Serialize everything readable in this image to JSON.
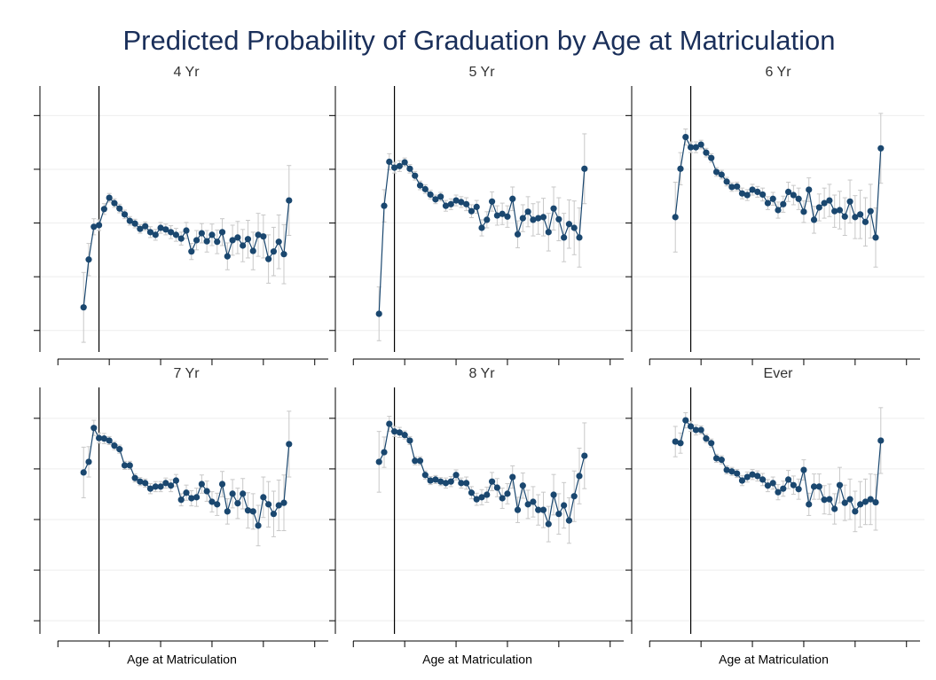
{
  "title": "Predicted Probability of Graduation by Age at Matriculation",
  "chart_data": [
    {
      "type": "line",
      "title": "4 Yr",
      "color": "#1a476f",
      "error_color": "#c8c8c8",
      "reference_x": 18,
      "x": [
        15,
        16,
        17,
        18,
        19,
        20,
        21,
        22,
        23,
        24,
        25,
        26,
        27,
        28,
        29,
        30,
        31,
        32,
        33,
        34,
        35,
        36,
        37,
        38,
        39,
        40,
        41,
        42,
        43,
        44,
        45,
        46,
        47,
        48,
        49,
        50,
        51,
        52,
        53,
        54,
        55
      ],
      "values": [
        0.143,
        0.232,
        0.293,
        0.296,
        0.326,
        0.347,
        0.337,
        0.327,
        0.316,
        0.304,
        0.299,
        0.289,
        0.294,
        0.283,
        0.278,
        0.291,
        0.288,
        0.283,
        0.278,
        0.271,
        0.286,
        0.247,
        0.268,
        0.281,
        0.266,
        0.278,
        0.265,
        0.283,
        0.238,
        0.268,
        0.273,
        0.258,
        0.27,
        0.248,
        0.278,
        0.275,
        0.233,
        0.247,
        0.265,
        0.242,
        0.342
      ],
      "errors": [
        0.065,
        0.03,
        0.015,
        0.01,
        0.01,
        0.008,
        0.008,
        0.008,
        0.008,
        0.008,
        0.008,
        0.008,
        0.008,
        0.01,
        0.01,
        0.01,
        0.01,
        0.012,
        0.012,
        0.012,
        0.015,
        0.015,
        0.018,
        0.018,
        0.02,
        0.02,
        0.022,
        0.025,
        0.025,
        0.028,
        0.03,
        0.03,
        0.035,
        0.035,
        0.04,
        0.04,
        0.045,
        0.045,
        0.05,
        0.055,
        0.065
      ],
      "xlim": [
        6.5,
        63.5
      ],
      "xticks": [
        10,
        20,
        30,
        40,
        50,
        60
      ],
      "ylim": [
        0.06,
        0.555
      ],
      "yticks": [
        0.1,
        0.2,
        0.3,
        0.4,
        0.5
      ],
      "grid": true
    },
    {
      "type": "line",
      "title": "5 Yr",
      "color": "#1a476f",
      "error_color": "#c8c8c8",
      "reference_x": 18,
      "x": [
        15,
        16,
        17,
        18,
        19,
        20,
        21,
        22,
        23,
        24,
        25,
        26,
        27,
        28,
        29,
        30,
        31,
        32,
        33,
        34,
        35,
        36,
        37,
        38,
        39,
        40,
        41,
        42,
        43,
        44,
        45,
        46,
        47,
        48,
        49,
        50,
        51,
        52,
        53,
        54,
        55
      ],
      "values": [
        0.131,
        0.332,
        0.414,
        0.403,
        0.406,
        0.413,
        0.401,
        0.388,
        0.37,
        0.363,
        0.353,
        0.344,
        0.349,
        0.332,
        0.335,
        0.342,
        0.339,
        0.335,
        0.322,
        0.33,
        0.291,
        0.306,
        0.34,
        0.314,
        0.317,
        0.312,
        0.345,
        0.279,
        0.309,
        0.321,
        0.306,
        0.309,
        0.311,
        0.283,
        0.327,
        0.307,
        0.273,
        0.298,
        0.291,
        0.273,
        0.401
      ],
      "errors": [
        0.05,
        0.03,
        0.015,
        0.01,
        0.01,
        0.008,
        0.008,
        0.008,
        0.008,
        0.008,
        0.008,
        0.008,
        0.008,
        0.01,
        0.01,
        0.01,
        0.01,
        0.012,
        0.012,
        0.012,
        0.015,
        0.015,
        0.018,
        0.018,
        0.02,
        0.02,
        0.022,
        0.025,
        0.025,
        0.028,
        0.03,
        0.03,
        0.035,
        0.035,
        0.04,
        0.04,
        0.045,
        0.045,
        0.05,
        0.055,
        0.065
      ],
      "xlim": [
        6.5,
        63.5
      ],
      "xticks": [
        10,
        20,
        30,
        40,
        50,
        60
      ],
      "ylim": [
        0.06,
        0.555
      ],
      "yticks": [
        0.1,
        0.2,
        0.3,
        0.4,
        0.5
      ],
      "grid": true
    },
    {
      "type": "line",
      "title": "6 Yr",
      "color": "#1a476f",
      "error_color": "#c8c8c8",
      "reference_x": 18,
      "x": [
        15,
        16,
        17,
        18,
        19,
        20,
        21,
        22,
        23,
        24,
        25,
        26,
        27,
        28,
        29,
        30,
        31,
        32,
        33,
        34,
        35,
        36,
        37,
        38,
        39,
        40,
        41,
        42,
        43,
        44,
        45,
        46,
        47,
        48,
        49,
        50,
        51,
        52,
        53,
        54,
        55
      ],
      "values": [
        0.311,
        0.401,
        0.46,
        0.441,
        0.441,
        0.446,
        0.431,
        0.421,
        0.395,
        0.39,
        0.377,
        0.367,
        0.368,
        0.355,
        0.352,
        0.362,
        0.358,
        0.353,
        0.337,
        0.345,
        0.324,
        0.335,
        0.358,
        0.352,
        0.345,
        0.321,
        0.362,
        0.306,
        0.329,
        0.337,
        0.342,
        0.322,
        0.324,
        0.312,
        0.34,
        0.311,
        0.316,
        0.302,
        0.322,
        0.273,
        0.439
      ],
      "errors": [
        0.065,
        0.03,
        0.015,
        0.01,
        0.01,
        0.008,
        0.008,
        0.008,
        0.008,
        0.008,
        0.008,
        0.008,
        0.008,
        0.01,
        0.01,
        0.01,
        0.01,
        0.012,
        0.012,
        0.012,
        0.015,
        0.015,
        0.018,
        0.018,
        0.02,
        0.02,
        0.022,
        0.025,
        0.025,
        0.028,
        0.03,
        0.03,
        0.035,
        0.035,
        0.04,
        0.04,
        0.045,
        0.045,
        0.05,
        0.055,
        0.065
      ],
      "xlim": [
        6.5,
        63.5
      ],
      "xticks": [
        10,
        20,
        30,
        40,
        50,
        60
      ],
      "ylim": [
        0.06,
        0.555
      ],
      "yticks": [
        0.1,
        0.2,
        0.3,
        0.4,
        0.5
      ],
      "grid": true
    },
    {
      "type": "line",
      "title": "7 Yr",
      "xlabel": "Age at Matriculation",
      "color": "#1a476f",
      "error_color": "#c8c8c8",
      "reference_x": 18,
      "x": [
        15,
        16,
        17,
        18,
        19,
        20,
        21,
        22,
        23,
        24,
        25,
        26,
        27,
        28,
        29,
        30,
        31,
        32,
        33,
        34,
        35,
        36,
        37,
        38,
        39,
        40,
        41,
        42,
        43,
        44,
        45,
        46,
        47,
        48,
        49,
        50,
        51,
        52,
        53,
        54,
        55
      ],
      "values": [
        0.393,
        0.414,
        0.481,
        0.461,
        0.46,
        0.456,
        0.446,
        0.439,
        0.407,
        0.407,
        0.382,
        0.375,
        0.372,
        0.361,
        0.365,
        0.365,
        0.372,
        0.367,
        0.377,
        0.339,
        0.353,
        0.342,
        0.344,
        0.37,
        0.356,
        0.335,
        0.33,
        0.37,
        0.316,
        0.351,
        0.332,
        0.351,
        0.318,
        0.316,
        0.288,
        0.344,
        0.33,
        0.311,
        0.328,
        0.333,
        0.449
      ],
      "errors": [
        0.05,
        0.03,
        0.015,
        0.01,
        0.01,
        0.008,
        0.008,
        0.008,
        0.008,
        0.008,
        0.008,
        0.008,
        0.008,
        0.01,
        0.01,
        0.01,
        0.01,
        0.012,
        0.012,
        0.012,
        0.015,
        0.015,
        0.018,
        0.018,
        0.02,
        0.02,
        0.022,
        0.025,
        0.025,
        0.028,
        0.03,
        0.03,
        0.035,
        0.035,
        0.04,
        0.04,
        0.045,
        0.045,
        0.05,
        0.055,
        0.065
      ],
      "xlim": [
        6.5,
        63.5
      ],
      "xticks": [
        10,
        20,
        30,
        40,
        50,
        60
      ],
      "ylim": [
        0.074,
        0.561
      ],
      "yticks": [
        0.1,
        0.2,
        0.3,
        0.4,
        0.5
      ],
      "grid": true
    },
    {
      "type": "line",
      "title": "8 Yr",
      "xlabel": "Age at Matriculation",
      "color": "#1a476f",
      "error_color": "#c8c8c8",
      "reference_x": 18,
      "x": [
        15,
        16,
        17,
        18,
        19,
        20,
        21,
        22,
        23,
        24,
        25,
        26,
        27,
        28,
        29,
        30,
        31,
        32,
        33,
        34,
        35,
        36,
        37,
        38,
        39,
        40,
        41,
        42,
        43,
        44,
        45,
        46,
        47,
        48,
        49,
        50,
        51,
        52,
        53,
        54,
        55
      ],
      "values": [
        0.414,
        0.433,
        0.489,
        0.474,
        0.472,
        0.467,
        0.456,
        0.416,
        0.416,
        0.388,
        0.377,
        0.379,
        0.375,
        0.372,
        0.375,
        0.388,
        0.372,
        0.372,
        0.353,
        0.34,
        0.344,
        0.349,
        0.375,
        0.363,
        0.342,
        0.351,
        0.384,
        0.319,
        0.367,
        0.33,
        0.335,
        0.319,
        0.319,
        0.291,
        0.349,
        0.311,
        0.328,
        0.298,
        0.346,
        0.386,
        0.426
      ],
      "errors": [
        0.06,
        0.03,
        0.015,
        0.01,
        0.01,
        0.008,
        0.008,
        0.008,
        0.008,
        0.008,
        0.008,
        0.008,
        0.008,
        0.01,
        0.01,
        0.01,
        0.01,
        0.012,
        0.012,
        0.012,
        0.015,
        0.015,
        0.018,
        0.018,
        0.02,
        0.02,
        0.022,
        0.025,
        0.025,
        0.028,
        0.03,
        0.03,
        0.035,
        0.035,
        0.04,
        0.04,
        0.045,
        0.045,
        0.05,
        0.055,
        0.065
      ],
      "xlim": [
        6.5,
        63.5
      ],
      "xticks": [
        10,
        20,
        30,
        40,
        50,
        60
      ],
      "ylim": [
        0.074,
        0.561
      ],
      "yticks": [
        0.1,
        0.2,
        0.3,
        0.4,
        0.5
      ],
      "grid": true
    },
    {
      "type": "line",
      "title": "Ever",
      "xlabel": "Age at Matriculation",
      "color": "#1a476f",
      "error_color": "#c8c8c8",
      "reference_x": 18,
      "x": [
        15,
        16,
        17,
        18,
        19,
        20,
        21,
        22,
        23,
        24,
        25,
        26,
        27,
        28,
        29,
        30,
        31,
        32,
        33,
        34,
        35,
        36,
        37,
        38,
        39,
        40,
        41,
        42,
        43,
        44,
        45,
        46,
        47,
        48,
        49,
        50,
        51,
        52,
        53,
        54,
        55
      ],
      "values": [
        0.454,
        0.451,
        0.496,
        0.484,
        0.477,
        0.477,
        0.46,
        0.451,
        0.421,
        0.418,
        0.398,
        0.395,
        0.391,
        0.377,
        0.384,
        0.389,
        0.386,
        0.379,
        0.367,
        0.372,
        0.354,
        0.361,
        0.379,
        0.368,
        0.36,
        0.398,
        0.33,
        0.365,
        0.365,
        0.339,
        0.34,
        0.321,
        0.368,
        0.333,
        0.34,
        0.316,
        0.33,
        0.335,
        0.34,
        0.334,
        0.456
      ],
      "errors": [
        0.03,
        0.02,
        0.015,
        0.01,
        0.01,
        0.008,
        0.008,
        0.008,
        0.008,
        0.008,
        0.008,
        0.008,
        0.008,
        0.01,
        0.01,
        0.01,
        0.01,
        0.012,
        0.012,
        0.012,
        0.015,
        0.015,
        0.018,
        0.018,
        0.02,
        0.02,
        0.022,
        0.025,
        0.025,
        0.028,
        0.03,
        0.03,
        0.035,
        0.035,
        0.04,
        0.04,
        0.045,
        0.045,
        0.05,
        0.055,
        0.065
      ],
      "xlim": [
        6.5,
        63.5
      ],
      "xticks": [
        10,
        20,
        30,
        40,
        50,
        60
      ],
      "ylim": [
        0.074,
        0.561
      ],
      "yticks": [
        0.1,
        0.2,
        0.3,
        0.4,
        0.5
      ],
      "grid": true
    }
  ]
}
